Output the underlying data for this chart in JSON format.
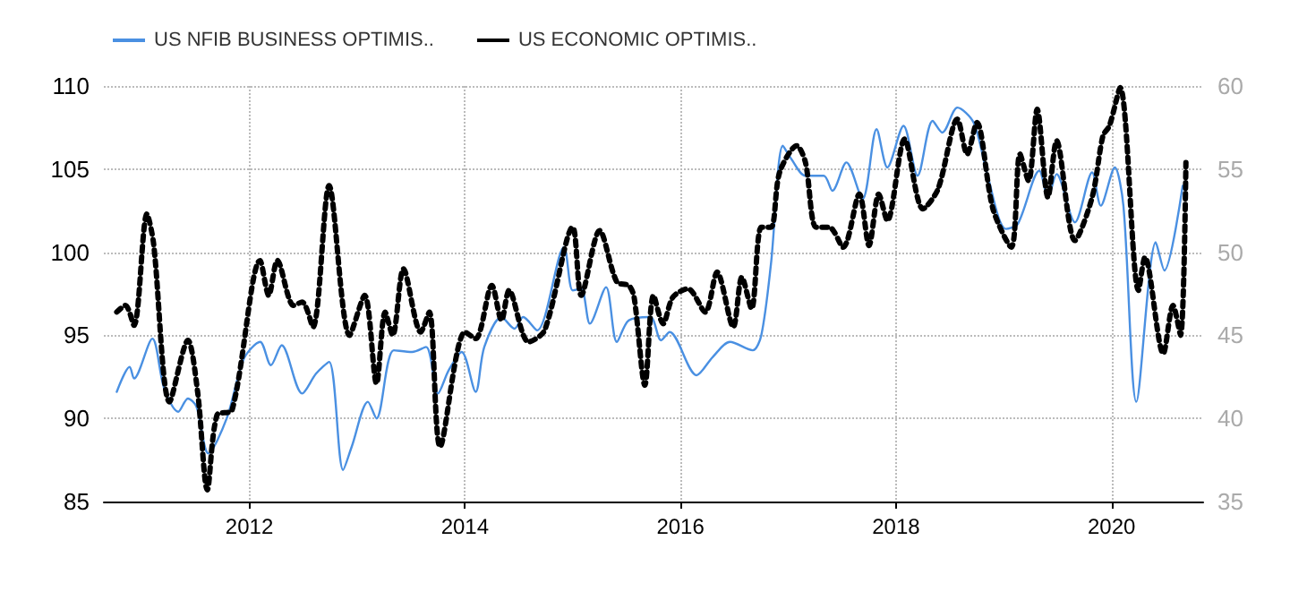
{
  "chart_data": {
    "type": "line",
    "xlim": [
      2010.65,
      2020.85
    ],
    "xticks": [
      2012,
      2014,
      2016,
      2018,
      2020
    ],
    "ylim": [
      85,
      110
    ],
    "yticks": [
      85,
      90,
      95,
      100,
      105,
      110
    ],
    "y2lim": [
      35,
      60
    ],
    "y2ticks": [
      35,
      40,
      45,
      50,
      55,
      60
    ],
    "grid": true,
    "legend": "top left",
    "marker": "none",
    "series": [
      {
        "name": "US NFIB BUSINESS OPTIMIS..",
        "color": "#4a90e2",
        "line_style": "solid",
        "x": [
          2010.77,
          2010.89,
          2010.93,
          2011.1,
          2011.21,
          2011.34,
          2011.43,
          2011.51,
          2011.62,
          2011.79,
          2011.95,
          2012.1,
          2012.2,
          2012.3,
          2012.49,
          2012.62,
          2012.74,
          2012.87,
          2012.95,
          2013.1,
          2013.18,
          2013.34,
          2013.51,
          2013.64,
          2013.75,
          2013.85,
          2013.97,
          2014.1,
          2014.18,
          2014.34,
          2014.46,
          2014.54,
          2014.67,
          2014.92,
          2015.0,
          2015.08,
          2015.16,
          2015.31,
          2015.41,
          2015.52,
          2015.72,
          2015.82,
          2015.9,
          2016.15,
          2016.3,
          2016.46,
          2016.67,
          2016.75,
          2016.84,
          2016.95,
          2017.03,
          2017.16,
          2017.33,
          2017.41,
          2017.54,
          2017.69,
          2017.82,
          2017.92,
          2018.07,
          2018.2,
          2018.34,
          2018.43,
          2018.57,
          2018.72,
          2018.85,
          2019.02,
          2019.13,
          2019.33,
          2019.41,
          2019.49,
          2019.66,
          2019.82,
          2019.9,
          2020.03,
          2020.11,
          2020.23,
          2020.41,
          2020.49,
          2020.66
        ],
        "values": [
          91.6,
          93.1,
          92.4,
          94.8,
          91.8,
          90.4,
          91.2,
          90.7,
          87.9,
          90.0,
          93.6,
          94.6,
          93.2,
          94.4,
          91.5,
          92.7,
          93.4,
          86.9,
          88.3,
          91.0,
          90.0,
          94.1,
          94.0,
          94.3,
          91.5,
          92.9,
          94.0,
          91.6,
          94.3,
          96.1,
          95.4,
          96.1,
          95.3,
          100.3,
          97.7,
          97.8,
          95.7,
          97.9,
          94.6,
          95.9,
          96.1,
          94.7,
          95.2,
          92.6,
          93.7,
          94.6,
          94.1,
          95.0,
          99.3,
          106.4,
          105.6,
          104.6,
          104.6,
          103.7,
          105.4,
          103.2,
          107.4,
          105.1,
          107.6,
          104.6,
          107.9,
          107.2,
          108.7,
          107.8,
          104.6,
          101.4,
          101.7,
          104.9,
          103.3,
          104.7,
          101.8,
          104.8,
          102.8,
          105.1,
          102.8,
          91.0,
          100.6,
          98.9,
          104.0
        ]
      },
      {
        "name": "US ECONOMIC OPTIMIS..",
        "color": "#000000",
        "line_style": "dotted",
        "axis": "y2",
        "x": [
          2010.77,
          2010.85,
          2010.93,
          2011.05,
          2011.11,
          2011.26,
          2011.43,
          2011.52,
          2011.61,
          2011.7,
          2011.84,
          2012.1,
          2012.18,
          2012.26,
          2012.41,
          2012.49,
          2012.59,
          2012.74,
          2012.93,
          2013.07,
          2013.18,
          2013.26,
          2013.33,
          2013.43,
          2013.59,
          2013.67,
          2013.77,
          2014.0,
          2014.1,
          2014.25,
          2014.34,
          2014.41,
          2014.59,
          2014.74,
          2015.0,
          2015.08,
          2015.25,
          2015.41,
          2015.52,
          2015.57,
          2015.67,
          2015.75,
          2015.84,
          2015.93,
          2016.07,
          2016.23,
          2016.34,
          2016.49,
          2016.57,
          2016.66,
          2016.75,
          2016.84,
          2016.92,
          2017.08,
          2017.16,
          2017.26,
          2017.38,
          2017.51,
          2017.66,
          2017.75,
          2017.84,
          2017.92,
          2018.08,
          2018.25,
          2018.39,
          2018.57,
          2018.66,
          2018.75,
          2018.9,
          2019.07,
          2019.15,
          2019.23,
          2019.31,
          2019.41,
          2019.49,
          2019.66,
          2019.82,
          2019.92,
          2019.98,
          2020.08,
          2020.25,
          2020.31,
          2020.48,
          2020.57,
          2020.64,
          2020.69
        ],
        "values": [
          46.4,
          46.8,
          45.6,
          52.3,
          50.6,
          41.0,
          44.7,
          41.6,
          35.7,
          40.2,
          40.5,
          49.5,
          47.4,
          49.5,
          46.8,
          47.0,
          45.5,
          54.0,
          45.0,
          47.4,
          42.1,
          46.4,
          45.0,
          49.0,
          45.2,
          46.4,
          38.3,
          45.2,
          44.8,
          48.0,
          45.9,
          47.7,
          44.6,
          45.3,
          51.5,
          47.4,
          51.3,
          48.2,
          48.0,
          47.3,
          42.0,
          47.4,
          45.7,
          47.3,
          47.8,
          46.4,
          48.8,
          45.5,
          48.5,
          46.6,
          51.5,
          51.5,
          54.8,
          56.4,
          55.4,
          51.5,
          51.5,
          50.3,
          53.5,
          50.4,
          53.5,
          51.9,
          56.8,
          52.6,
          53.8,
          58.0,
          55.9,
          57.8,
          52.6,
          50.3,
          55.9,
          54.3,
          58.6,
          53.3,
          56.7,
          50.7,
          53.3,
          57.0,
          57.6,
          59.9,
          47.7,
          49.7,
          43.9,
          46.8,
          45.0,
          55.4
        ]
      }
    ]
  }
}
